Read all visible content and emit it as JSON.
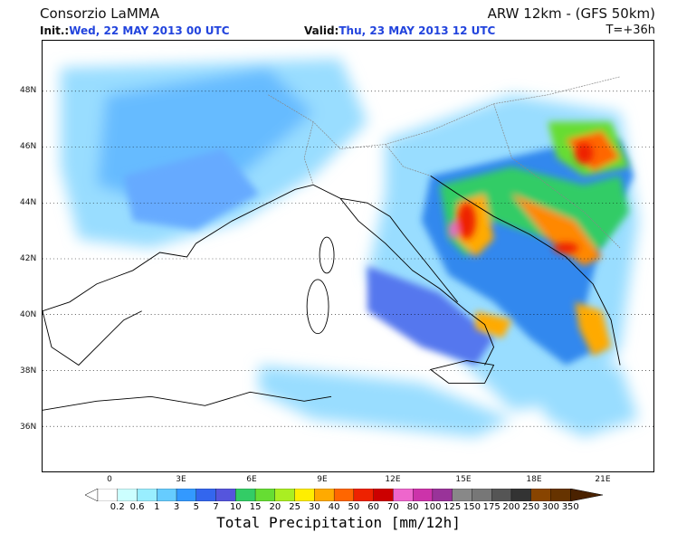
{
  "header": {
    "org": "Consorzio LaMMA",
    "model": "ARW 12km - (GFS 50km)",
    "init_label": "Init.:",
    "init_value": "Wed, 22 MAY 2013  00 UTC",
    "valid_label": "Valid:",
    "valid_value": "Thu, 23 MAY 2013  12 UTC",
    "lead": "T=+36h"
  },
  "axes": {
    "lat": [
      "48N",
      "46N",
      "44N",
      "42N",
      "40N",
      "38N",
      "36N"
    ],
    "lon": [
      "0",
      "3E",
      "6E",
      "9E",
      "12E",
      "15E",
      "18E",
      "21E"
    ]
  },
  "legend": {
    "title": "Total Precipitation [mm/12h]",
    "labels": [
      "0.2",
      "0.6",
      "1",
      "3",
      "5",
      "7",
      "10",
      "15",
      "20",
      "25",
      "30",
      "40",
      "50",
      "60",
      "70",
      "80",
      "100",
      "125",
      "150",
      "175",
      "200",
      "250",
      "300",
      "350"
    ],
    "colors": [
      "#ccffff",
      "#99eeff",
      "#66ccff",
      "#3399ff",
      "#3366ee",
      "#5555dd",
      "#33cc66",
      "#66dd33",
      "#aaee22",
      "#ffee00",
      "#ffaa00",
      "#ff6600",
      "#ee2200",
      "#cc0000",
      "#ee66cc",
      "#cc33aa",
      "#993399",
      "#888888",
      "#777777",
      "#555555",
      "#333333",
      "#884400",
      "#663300",
      "#4a2200"
    ],
    "left_arrow_color": "#ffffff",
    "right_arrow_color": "#4a2200"
  }
}
